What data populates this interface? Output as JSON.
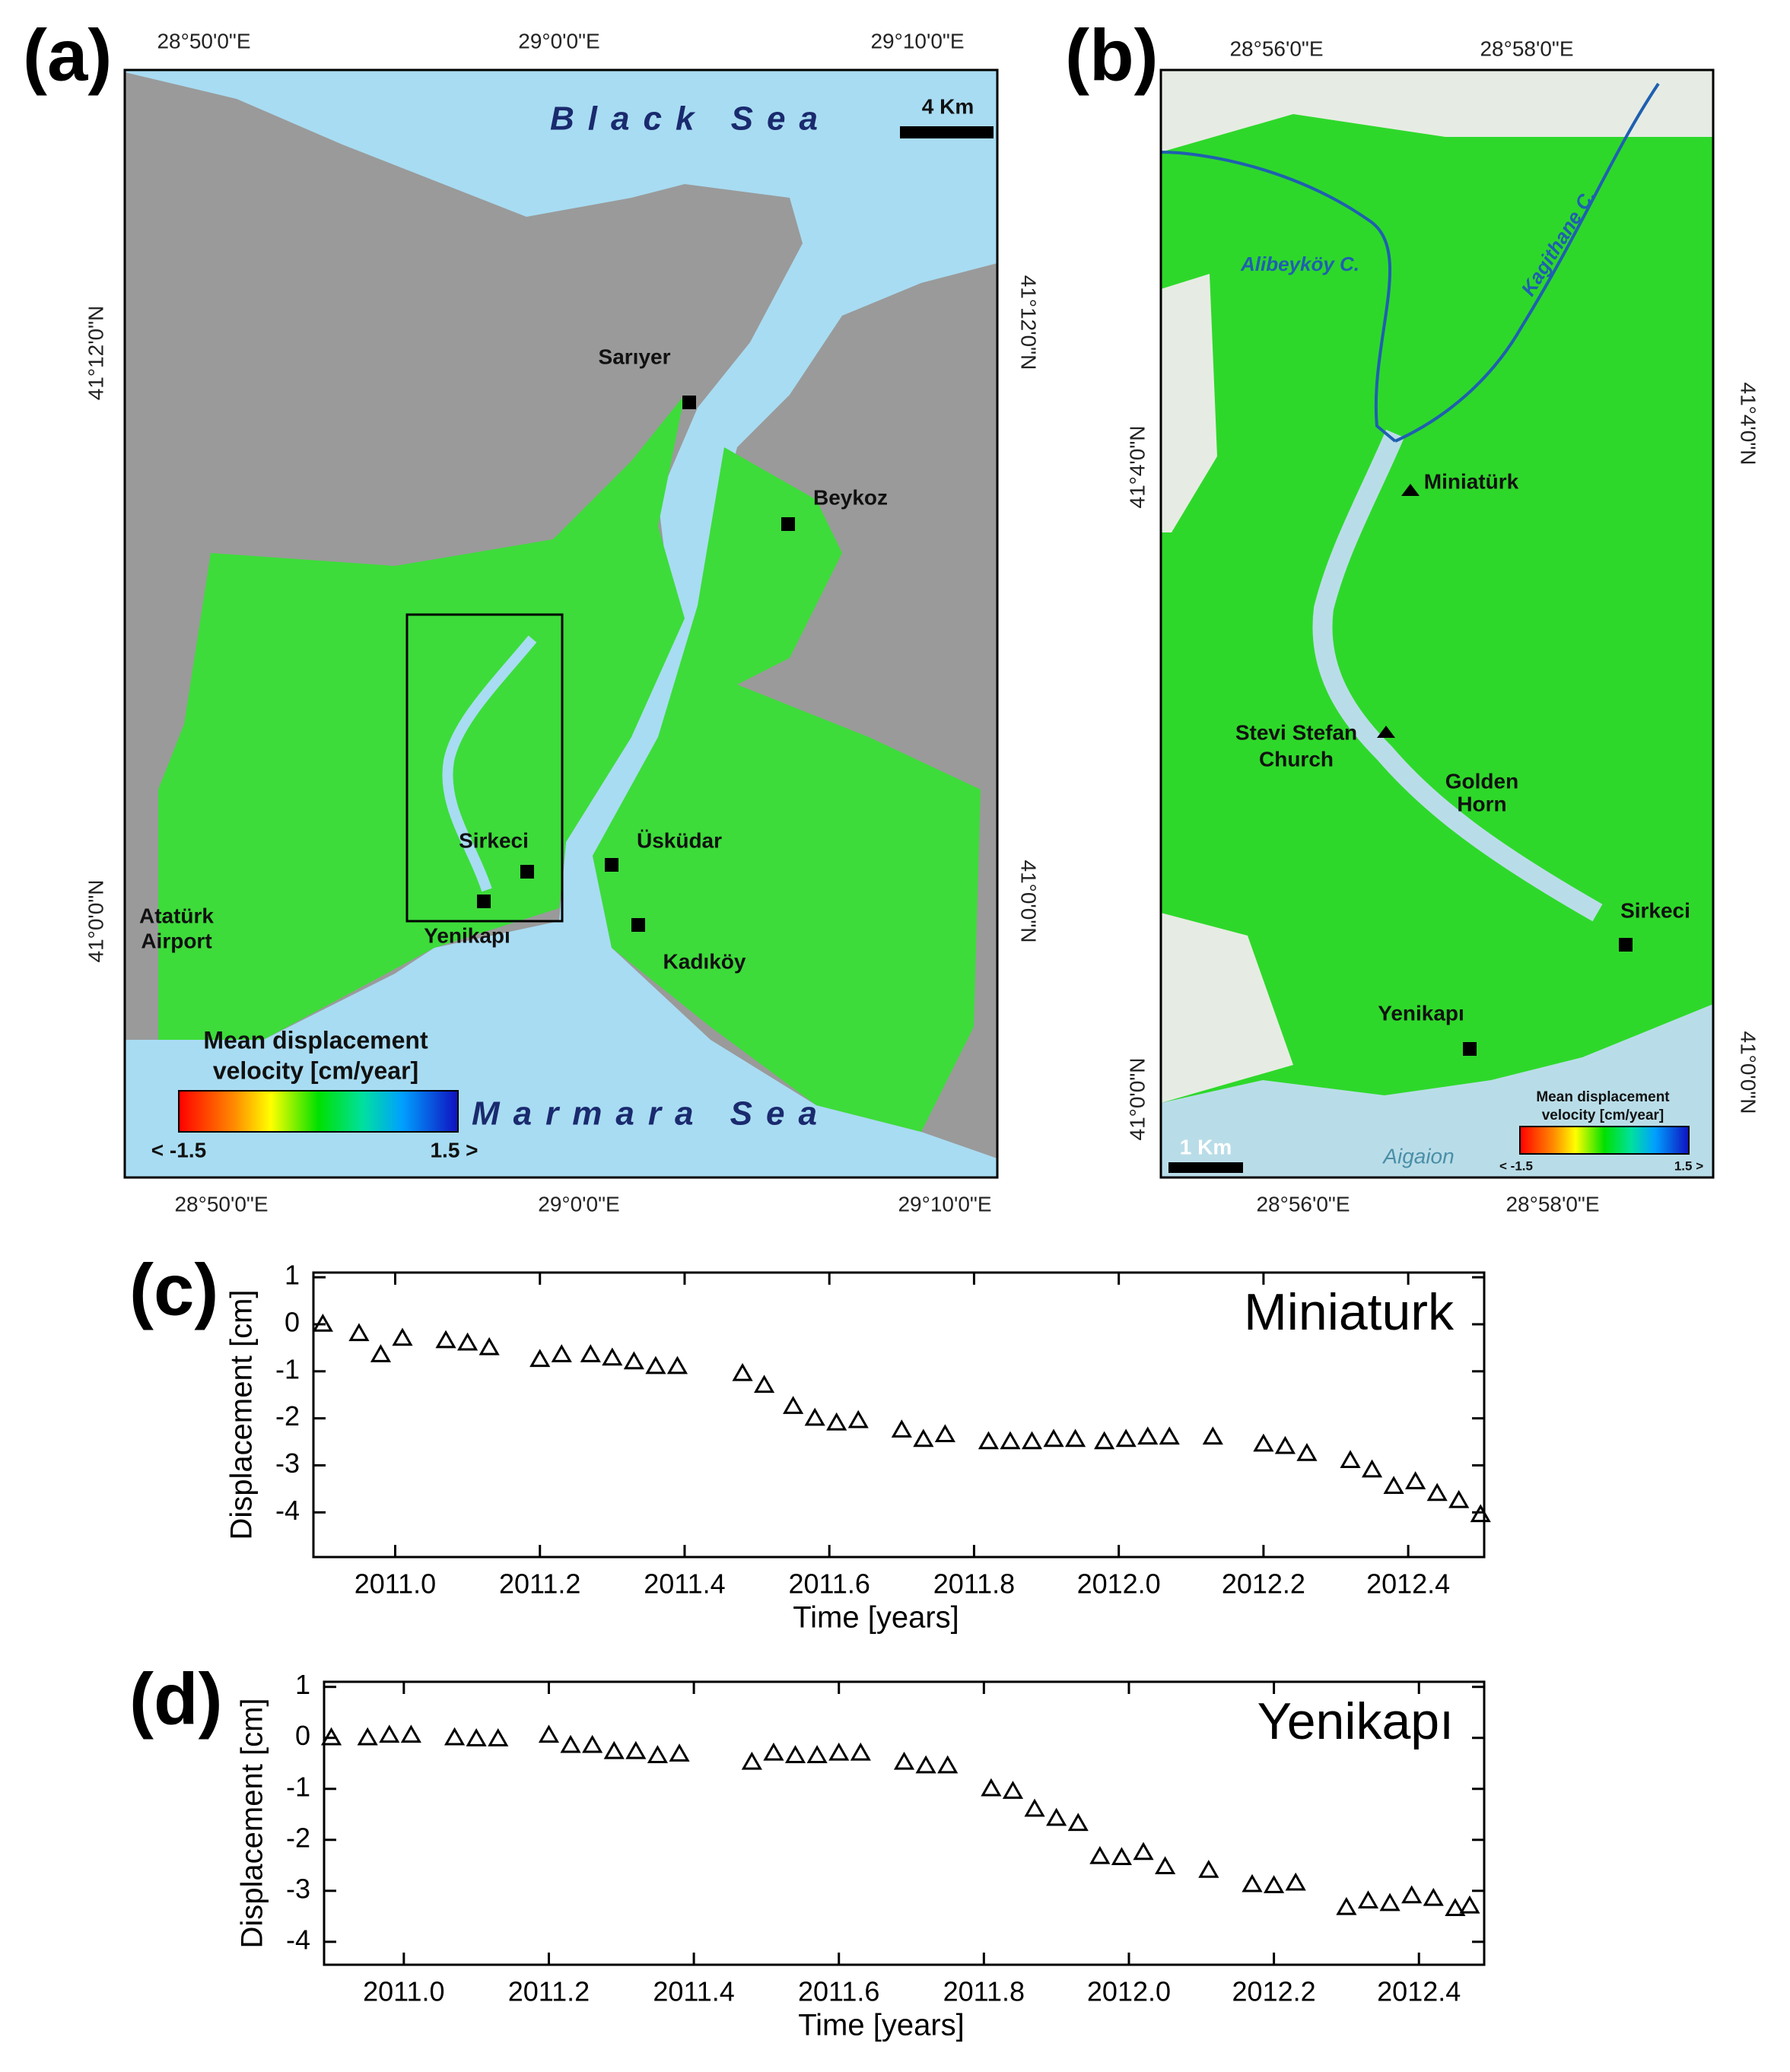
{
  "maps": [
    {
      "panel_label": "(a)",
      "ticks_lon": [
        "28°50'0\"E",
        "29°0'0\"E",
        "29°10'0\"E"
      ],
      "ticks_lat": [
        "41°12'0\"N",
        "41°0'0\"N"
      ],
      "seas": [
        "Black Sea",
        "Marmara Sea"
      ],
      "scale": "4 Km",
      "places": [
        "Sarıyer",
        "Beykoz",
        "Sirkeci",
        "Üsküdar",
        "Yenikapı",
        "Kadıköy"
      ],
      "airport": [
        "Atatürk",
        "Airport"
      ],
      "legend_title": [
        "Mean displacement",
        "velocity [cm/year]"
      ],
      "legend_min": "< -1.5",
      "legend_max": "1.5 >"
    },
    {
      "panel_label": "(b)",
      "ticks_lon": [
        "28°56'0\"E",
        "28°58'0\"E"
      ],
      "ticks_lat": [
        "41°4'0\"N",
        "41°0'0\"N"
      ],
      "rivers": [
        "Alibeyköy C.",
        "Kagithane C."
      ],
      "places": [
        "Miniatürk",
        "Sirkeci",
        "Yenikapı"
      ],
      "church": [
        "Stevi Stefan",
        "Church"
      ],
      "golden_horn": [
        "Golden",
        "Horn"
      ],
      "scale": "1 Km",
      "basemap_label": "Aigaion",
      "legend_title": [
        "Mean displacement",
        "velocity [cm/year]"
      ],
      "legend_min": "< -1.5",
      "legend_max": "1.5 >"
    }
  ],
  "chart_data": [
    {
      "type": "scatter",
      "panel_label": "(c)",
      "title": "Miniaturk",
      "marker": "triangle",
      "color": "#000000",
      "xlabel": "Time [years]",
      "ylabel": "Displacement [cm]",
      "xlim": [
        2010.887,
        2012.505
      ],
      "ylim": [
        -4.95,
        1.1
      ],
      "xticks": [
        {
          "value": 2011,
          "label": "2011.0"
        },
        2011.2,
        2011.4,
        2011.6,
        2011.8,
        {
          "value": 2012,
          "label": "2012.0"
        },
        2012.2,
        2012.4
      ],
      "yticks": [
        1,
        0,
        -1,
        -2,
        -3,
        -4
      ],
      "x": [
        2010.9,
        2010.95,
        2010.98,
        2011.01,
        2011.07,
        2011.1,
        2011.13,
        2011.2,
        2011.23,
        2011.27,
        2011.3,
        2011.33,
        2011.36,
        2011.39,
        2011.48,
        2011.51,
        2011.55,
        2011.58,
        2011.61,
        2011.64,
        2011.7,
        2011.73,
        2011.76,
        2011.82,
        2011.85,
        2011.88,
        2011.91,
        2011.94,
        2011.98,
        2012.01,
        2012.04,
        2012.07,
        2012.13,
        2012.2,
        2012.23,
        2012.26,
        2012.32,
        2012.35,
        2012.38,
        2012.41,
        2012.44,
        2012.47,
        2012.5
      ],
      "values": [
        0,
        -0.2,
        -0.65,
        -0.3,
        -0.35,
        -0.4,
        -0.5,
        -0.75,
        -0.65,
        -0.65,
        -0.72,
        -0.8,
        -0.9,
        -0.9,
        -1.05,
        -1.3,
        -1.75,
        -2.0,
        -2.1,
        -2.05,
        -2.25,
        -2.45,
        -2.35,
        -2.5,
        -2.5,
        -2.5,
        -2.45,
        -2.45,
        -2.5,
        -2.45,
        -2.4,
        -2.4,
        -2.4,
        -2.55,
        -2.6,
        -2.75,
        -2.9,
        -3.1,
        -3.45,
        -3.35,
        -3.6,
        -3.75,
        -4.05
      ]
    },
    {
      "type": "scatter",
      "panel_label": "(d)",
      "title": "Yenikapı",
      "marker": "triangle",
      "color": "#000000",
      "xlabel": "Time [years]",
      "ylabel": "Displacement [cm]",
      "xlim": [
        2010.89,
        2012.49
      ],
      "ylim": [
        -4.45,
        1.1
      ],
      "xticks": [
        {
          "value": 2011,
          "label": "2011.0"
        },
        2011.2,
        2011.4,
        2011.6,
        2011.8,
        {
          "value": 2012,
          "label": "2012.0"
        },
        2012.2,
        2012.4
      ],
      "yticks": [
        1,
        0,
        -1,
        -2,
        -3,
        -4
      ],
      "x": [
        2010.9,
        2010.95,
        2010.98,
        2011.01,
        2011.07,
        2011.1,
        2011.13,
        2011.2,
        2011.23,
        2011.26,
        2011.29,
        2011.32,
        2011.35,
        2011.38,
        2011.48,
        2011.51,
        2011.54,
        2011.57,
        2011.6,
        2011.63,
        2011.69,
        2011.72,
        2011.75,
        2011.81,
        2011.84,
        2011.87,
        2011.9,
        2011.93,
        2011.96,
        2011.99,
        2012.02,
        2012.05,
        2012.11,
        2012.17,
        2012.2,
        2012.23,
        2012.3,
        2012.33,
        2012.36,
        2012.39,
        2012.42,
        2012.45,
        2012.47
      ],
      "values": [
        0,
        0,
        0.05,
        0.05,
        0,
        -0.02,
        -0.02,
        0.05,
        -0.15,
        -0.15,
        -0.27,
        -0.27,
        -0.35,
        -0.32,
        -0.48,
        -0.3,
        -0.35,
        -0.35,
        -0.3,
        -0.3,
        -0.48,
        -0.55,
        -0.55,
        -1.0,
        -1.05,
        -1.4,
        -1.58,
        -1.68,
        -2.33,
        -2.35,
        -2.25,
        -2.53,
        -2.6,
        -2.88,
        -2.9,
        -2.85,
        -3.33,
        -3.2,
        -3.25,
        -3.1,
        -3.15,
        -3.35,
        -3.3
      ]
    }
  ]
}
